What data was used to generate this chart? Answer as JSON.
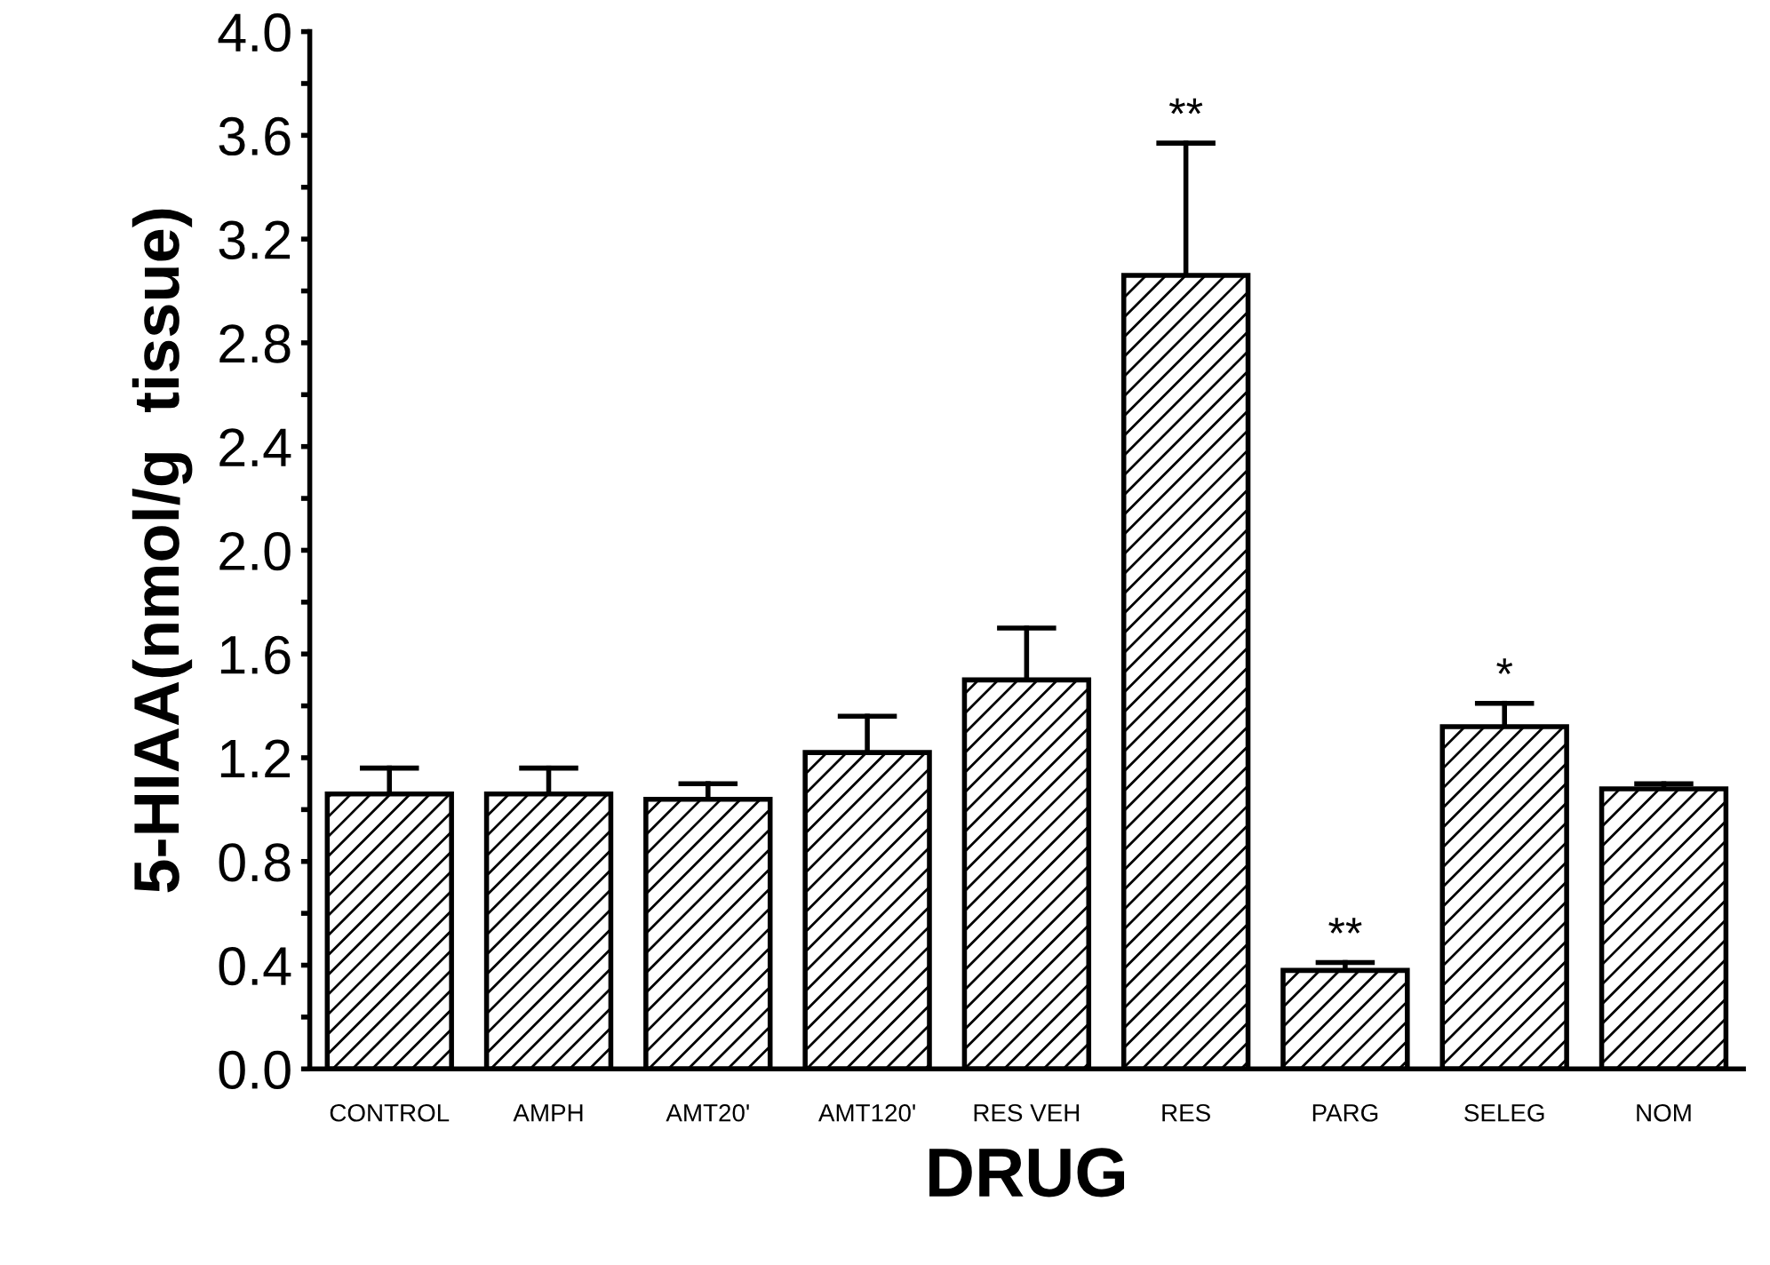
{
  "chart_data": {
    "type": "bar",
    "xlabel": "DRUG",
    "ylabel": "5-HIAA(nmol/g  tissue)",
    "categories": [
      "CONTROL",
      "AMPH",
      "AMT20'",
      "AMT120'",
      "RES VEH",
      "RES",
      "PARG",
      "SELEG",
      "NOM"
    ],
    "values": [
      1.06,
      1.06,
      1.04,
      1.22,
      1.5,
      3.06,
      0.38,
      1.32,
      1.08
    ],
    "errors": [
      [
        1.06,
        1.16
      ],
      [
        1.06,
        1.16
      ],
      [
        1.04,
        1.1
      ],
      [
        1.22,
        1.36
      ],
      [
        1.5,
        1.7
      ],
      [
        3.06,
        3.57
      ],
      [
        0.38,
        0.41
      ],
      [
        1.32,
        1.41
      ],
      [
        1.08,
        1.1
      ]
    ],
    "color": "#000000",
    "ylim": [
      0,
      4.0
    ],
    "yticks": [
      {
        "value": 0,
        "label": "0.0"
      },
      {
        "value": 0.2,
        "label": null
      },
      0.4,
      {
        "value": 0.6,
        "label": null
      },
      0.8,
      {
        "value": 1.0,
        "label": null
      },
      1.2,
      {
        "value": 1.4,
        "label": null
      },
      1.6,
      {
        "value": 1.8,
        "label": null
      },
      {
        "value": 2,
        "label": "2.0"
      },
      {
        "value": 2.2,
        "label": null
      },
      2.4,
      {
        "value": 2.6,
        "label": null
      },
      2.8,
      {
        "value": 3.0,
        "label": null
      },
      3.2,
      {
        "value": 3.4,
        "label": null
      },
      3.6,
      {
        "value": 3.8,
        "label": null
      },
      {
        "value": 4,
        "label": "4.0"
      }
    ],
    "annotations": [
      {
        "text": "**",
        "x": "RES",
        "y": 3.57
      },
      {
        "text": "**",
        "x": "PARG",
        "y": 0.41
      },
      {
        "text": "*",
        "x": "SELEG",
        "y": 1.41
      }
    ],
    "grid": false,
    "legend": false
  }
}
